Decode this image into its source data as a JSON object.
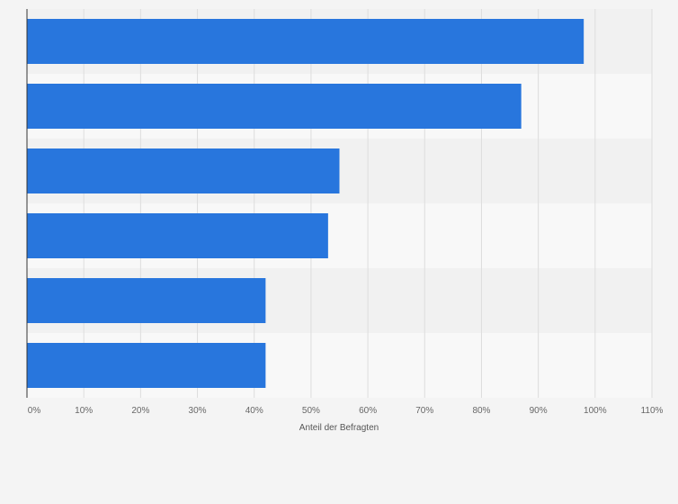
{
  "chart_data": {
    "type": "bar",
    "orientation": "horizontal",
    "categories": [
      "",
      "",
      "",
      "",
      "",
      ""
    ],
    "values": [
      98,
      87,
      55,
      53,
      42,
      42
    ],
    "xlim": [
      0,
      110
    ],
    "xticks": [
      "0%",
      "10%",
      "20%",
      "30%",
      "40%",
      "50%",
      "60%",
      "70%",
      "80%",
      "90%",
      "100%",
      "110%"
    ],
    "xlabel": "Anteil der Befragten",
    "ylabel": "",
    "grid": true,
    "bar_color": "#2876dd",
    "band_colors": [
      "#f1f1f1",
      "#f8f8f8"
    ]
  }
}
